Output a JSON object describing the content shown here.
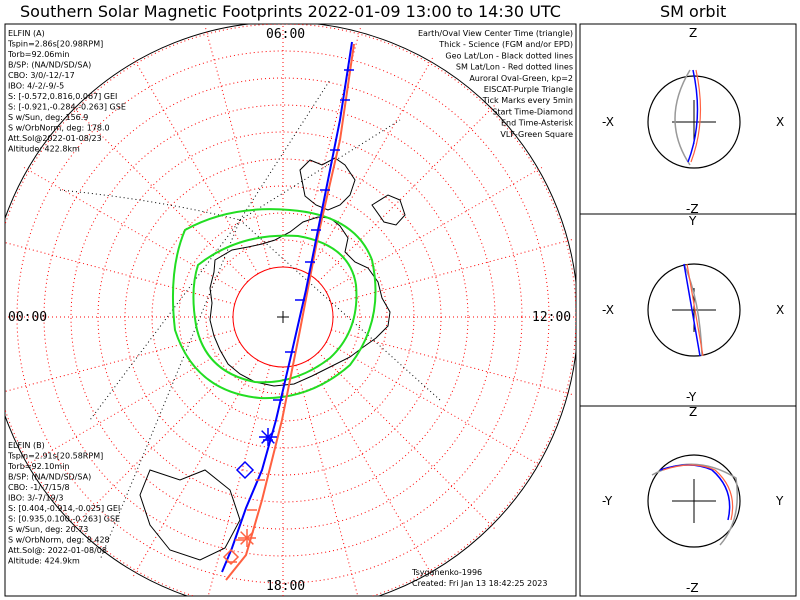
{
  "title": "Southern Solar Magnetic Footprints 2022-01-09 13:00 to 14:30 UTC",
  "orbit_title": "SM orbit",
  "colors": {
    "elfin_a": "#0000ff",
    "elfin_b": "#ff6040",
    "oval": "#22dd22",
    "grid_geo": "#000000",
    "grid_sm": "#ff0000",
    "eiscat": "#ee88ee",
    "ground": "#999999"
  },
  "chart_data": {
    "type": "polar-map",
    "hemisphere": "Southern",
    "coordinate_frame": "SM",
    "mlt_labels": {
      "top": "06:00",
      "left": "00:00",
      "right": "12:00",
      "bottom": "18:00"
    },
    "legend": [
      {
        "text": "Earth/Oval View Center Time (triangle)",
        "color": "#000000"
      },
      {
        "text": "Thick - Science (FGM and/or EPD)",
        "color": "#000000"
      },
      {
        "text": "Geo Lat/Lon - Black dotted lines",
        "color": "#000000"
      },
      {
        "text": "SM Lat/Lon - Red dotted lines",
        "color": "#ff0000"
      },
      {
        "text": "Auroral Oval-Green, kp=2",
        "color": "#22cc22"
      },
      {
        "text": "EISCAT-Purple Triangle",
        "color": "#ee88ee"
      },
      {
        "text": "Tick Marks every 5min",
        "color": "#000000"
      },
      {
        "text": "Start Time-Diamond",
        "color": "#000000"
      },
      {
        "text": "End Time-Asterisk",
        "color": "#000000"
      },
      {
        "text": "VLF-Green Square",
        "color": "#22cc22"
      }
    ],
    "elfin_a_info": [
      "ELFIN (A)",
      "Tspin=2.86s[20.98RPM]",
      "Torb=92.06min",
      "B/SP: (NA/ND/SD/SA)",
      "CBO: 3/0/-12/-17",
      "IBO: 4/-2/-9/-5",
      "S: [-0.572,0.816,0.067] GEI",
      "S: [-0.921,-0.284,-0.263] GSE",
      "S w/Sun, deg: 156.9",
      "S w/OrbNorm, deg: 178.0",
      "Att.Sol@2022-01-08/23",
      "Altitude: 422.8km"
    ],
    "elfin_b_info": [
      "ELFIN (B)",
      "Tspin=2.91s[20.58RPM]",
      "Torb=92.10min",
      "B/SP: (NA/ND/SD/SA)",
      "CBO: -1/-7/15/8",
      "IBO: 3/-7/19/3",
      "S: [0.404,-0.914,-0.025] GEI",
      "S: [0.935,0.100,-0.263] GSE",
      "S w/Sun, deg: 20.73",
      "S w/OrbNorm, deg: 8.428",
      "Att.Sol@: 2022-01-08/08",
      "Altitude: 424.9km"
    ],
    "footer": [
      "Tsyganenko-1996",
      "Created: Fri Jan 13 18:42:25 2023"
    ],
    "sm_orbit_panels": [
      {
        "top": "Z",
        "bottom": "-Z",
        "left": "-X",
        "right": "X"
      },
      {
        "top": "Y",
        "bottom": "-Y",
        "left": "-X",
        "right": "X"
      },
      {
        "top": "Z",
        "bottom": "-Z",
        "left": "-Y",
        "right": "Y"
      }
    ]
  }
}
